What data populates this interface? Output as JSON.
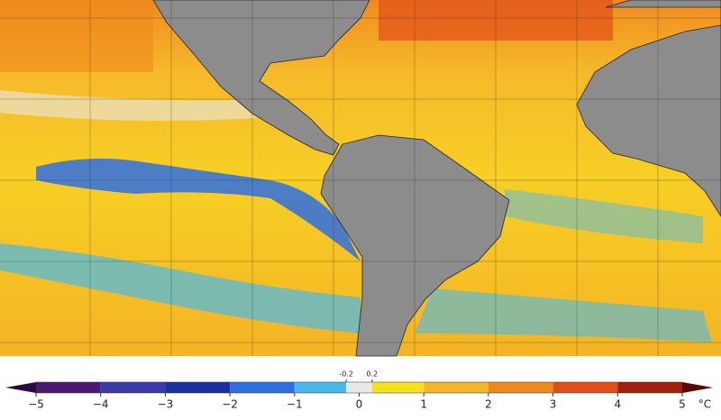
{
  "colorbar": {
    "range": [
      -5,
      5
    ],
    "ticks": [
      {
        "value": -5,
        "label": "−5"
      },
      {
        "value": -4,
        "label": "−4"
      },
      {
        "value": -3,
        "label": "−3"
      },
      {
        "value": -2,
        "label": "−2"
      },
      {
        "value": -1,
        "label": "−1"
      },
      0,
      1,
      2,
      3,
      4,
      5
    ],
    "fine_ticks": [
      -0.2,
      0.2
    ],
    "unit": "°C",
    "bounds": [
      -5,
      -4,
      -3,
      -2,
      -1,
      -0.2,
      0.2,
      1,
      2,
      3,
      4,
      5
    ],
    "colors": [
      "#4a1a6e",
      "#3a3aa8",
      "#1a2fa0",
      "#2f6ee0",
      "#49b9ec",
      "#e8e8e8",
      "#f5e11e",
      "#f2b82a",
      "#ee8a1c",
      "#e0501a",
      "#a0200e"
    ]
  }
}
